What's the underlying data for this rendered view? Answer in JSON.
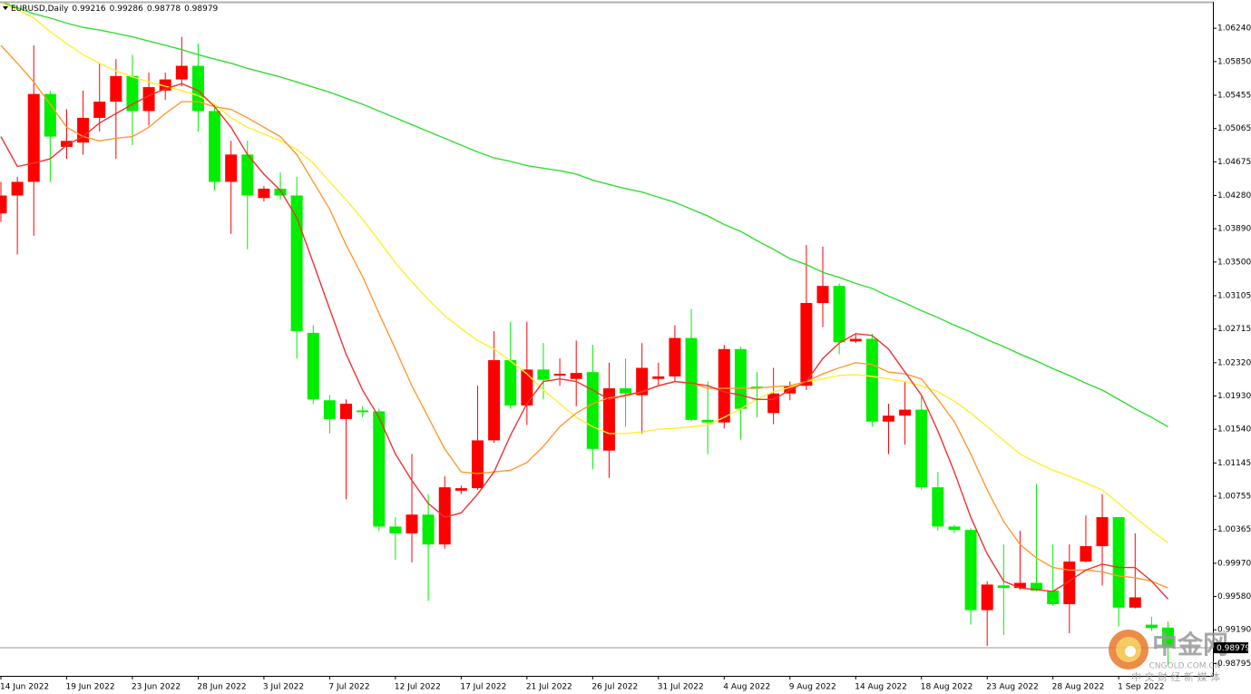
{
  "chart_data": {
    "type": "candlestick",
    "title": "EURUSD,Daily",
    "categories": [
      "14 Jun 2022",
      null,
      null,
      null,
      "19 Jun 2022",
      null,
      null,
      null,
      "23 Jun 2022",
      null,
      null,
      null,
      "28 Jun 2022",
      null,
      null,
      null,
      "3 Jul 2022",
      null,
      null,
      null,
      "7 Jul 2022",
      null,
      null,
      null,
      "12 Jul 2022",
      null,
      null,
      null,
      "17 Jul 2022",
      null,
      null,
      null,
      "21 Jul 2022",
      null,
      null,
      null,
      "26 Jul 2022",
      null,
      null,
      null,
      "31 Jul 2022",
      null,
      null,
      null,
      "4 Aug 2022",
      null,
      null,
      null,
      "9 Aug 2022",
      null,
      null,
      null,
      "14 Aug 2022",
      null,
      null,
      null,
      "18 Aug 2022",
      null,
      null,
      null,
      "23 Aug 2022",
      null,
      null,
      null,
      "28 Aug 2022",
      null,
      null,
      null,
      "1 Sep 2022",
      null,
      null,
      null
    ],
    "open": [
      1.0407,
      1.0428,
      1.0444,
      1.0547,
      1.0485,
      1.049,
      1.0519,
      1.0538,
      1.0568,
      1.0527,
      1.0551,
      1.0564,
      1.058,
      1.0527,
      1.0444,
      1.0476,
      1.0425,
      1.0436,
      1.0428,
      1.0267,
      1.0188,
      1.0166,
      1.0176,
      1.0175,
      1.004,
      1.0032,
      1.0054,
      1.0019,
      1.0082,
      1.0085,
      1.0141,
      1.0235,
      1.0182,
      1.0224,
      1.0217,
      1.0213,
      1.0221,
      1.0129,
      1.0202,
      1.0194,
      1.0213,
      1.0216,
      1.0261,
      1.0165,
      1.0162,
      1.0248,
      1.0204,
      1.0173,
      1.0196,
      1.0205,
      1.0302,
      1.0322,
      1.0257,
      1.026,
      1.0163,
      1.017,
      1.0177,
      1.0086,
      1.004,
      1.0036,
      0.9942,
      0.9971,
      0.9968,
      0.9974,
      0.9965,
      0.9949,
      0.9999,
      1.0017,
      1.0051,
      0.9945,
      0.9925,
      0.99216
    ],
    "high": [
      1.0444,
      1.045,
      1.0604,
      1.0551,
      1.0529,
      1.0551,
      1.0583,
      1.0588,
      1.0593,
      1.0572,
      1.0572,
      1.0614,
      1.0606,
      1.0535,
      1.0492,
      1.0492,
      1.0439,
      1.0455,
      1.045,
      1.0276,
      1.0194,
      1.0189,
      1.0181,
      1.0178,
      1.0051,
      1.0125,
      1.0078,
      1.0099,
      1.0088,
      1.0205,
      1.0269,
      1.028,
      1.028,
      1.0255,
      1.0237,
      1.0258,
      1.0253,
      1.0232,
      1.0237,
      1.0255,
      1.0232,
      1.0276,
      1.0295,
      1.021,
      1.0253,
      1.0251,
      1.0221,
      1.0226,
      1.021,
      1.037,
      1.0368,
      1.0325,
      1.0266,
      1.0266,
      1.0184,
      1.021,
      1.0194,
      1.0104,
      1.0042,
      1.0038,
      0.9976,
      1.0019,
      1.0035,
      1.009,
      1.0019,
      1.0019,
      1.0053,
      1.0078,
      1.0051,
      1.0032,
      0.9934,
      0.99286
    ],
    "low": [
      1.0397,
      1.0359,
      1.0381,
      1.0444,
      1.0471,
      1.0476,
      1.0503,
      1.0471,
      1.0487,
      1.051,
      1.054,
      1.0556,
      1.0503,
      1.0434,
      1.0383,
      1.0365,
      1.0421,
      1.0423,
      1.0237,
      1.0184,
      1.0149,
      1.0072,
      1.0168,
      1.0035,
      1.0001,
      0.9998,
      0.9953,
      1.0014,
      1.0078,
      1.0083,
      1.0138,
      1.0178,
      1.0159,
      1.0189,
      1.0205,
      1.0181,
      1.0107,
      1.0097,
      1.0157,
      1.0149,
      1.0205,
      1.021,
      1.0163,
      1.0125,
      1.0155,
      1.0142,
      1.0168,
      1.016,
      1.0188,
      1.02,
      1.0274,
      1.0242,
      1.0255,
      1.0157,
      1.0125,
      1.0136,
      1.0083,
      1.0035,
      1.0032,
      0.9925,
      0.99,
      0.9913,
      0.9966,
      0.9964,
      0.9947,
      0.9915,
      0.9998,
      0.9971,
      0.9923,
      0.9944,
      0.9918,
      0.98778
    ],
    "close": [
      1.0428,
      1.0444,
      1.0547,
      1.0497,
      1.0492,
      1.0519,
      1.0538,
      1.0568,
      1.0527,
      1.0555,
      1.0564,
      1.058,
      1.0527,
      1.0444,
      1.0476,
      1.0428,
      1.0436,
      1.0428,
      1.0269,
      1.0189,
      1.0166,
      1.0184,
      1.0174,
      1.004,
      1.0032,
      1.0054,
      1.0019,
      1.0086,
      1.0085,
      1.0141,
      1.0235,
      1.0182,
      1.0224,
      1.0212,
      1.0219,
      1.022,
      1.0131,
      1.0202,
      1.0196,
      1.0226,
      1.0216,
      1.0261,
      1.0165,
      1.0162,
      1.0248,
      1.0178,
      1.0202,
      1.0196,
      1.0205,
      1.0302,
      1.0322,
      1.0256,
      1.026,
      1.0163,
      1.017,
      1.0177,
      1.0086,
      1.004,
      1.0036,
      0.9942,
      0.9972,
      0.9968,
      0.9974,
      0.9965,
      0.9949,
      0.9999,
      1.0017,
      1.0051,
      0.9945,
      0.9957,
      0.9921,
      0.98979
    ],
    "up_color": "#ff0000",
    "down_color": "#00ee00",
    "lines": [
      {
        "color": "#33dd33",
        "values": [
          1.0655,
          1.0648,
          1.0641,
          1.0636,
          1.063,
          1.0625,
          1.0622,
          1.0618,
          1.0614,
          1.0609,
          1.0604,
          1.0599,
          1.0593,
          1.0588,
          1.0583,
          1.0577,
          1.0572,
          1.0567,
          1.0561,
          1.0555,
          1.0549,
          1.0542,
          1.0535,
          1.0527,
          1.0519,
          1.0511,
          1.0503,
          1.0495,
          1.0487,
          1.0479,
          1.0472,
          1.0468,
          1.0463,
          1.046,
          1.0457,
          1.0453,
          1.0446,
          1.0441,
          1.0436,
          1.0432,
          1.0426,
          1.042,
          1.0412,
          1.0404,
          1.0394,
          1.0386,
          1.0375,
          1.0365,
          1.0354,
          1.0347,
          1.0338,
          1.0332,
          1.0325,
          1.0319,
          1.031,
          1.0302,
          1.0293,
          1.0285,
          1.0276,
          1.0268,
          1.0259,
          1.0251,
          1.0242,
          1.0234,
          1.0225,
          1.0217,
          1.0208,
          1.02,
          1.0189,
          1.0178,
          1.0168,
          1.0157
        ]
      },
      {
        "color": "#ffee33",
        "values": [
          1.0654,
          1.0646,
          1.0636,
          1.062,
          1.0606,
          1.0593,
          1.0583,
          1.0574,
          1.0567,
          1.0561,
          1.0556,
          1.0551,
          1.0545,
          1.0535,
          1.0519,
          1.0508,
          1.05,
          1.0492,
          1.0482,
          1.0466,
          1.0444,
          1.0423,
          1.04,
          1.0375,
          1.0349,
          1.0327,
          1.0306,
          1.0287,
          1.0272,
          1.0258,
          1.0248,
          1.0234,
          1.0219,
          1.02,
          1.0184,
          1.0168,
          1.0157,
          1.0149,
          1.0149,
          1.0151,
          1.0154,
          1.0155,
          1.0157,
          1.0159,
          1.0168,
          1.0178,
          1.0189,
          1.0198,
          1.0203,
          1.021,
          1.0213,
          1.0217,
          1.0218,
          1.0216,
          1.0213,
          1.021,
          1.0205,
          1.0198,
          1.0187,
          1.0173,
          1.0157,
          1.0141,
          1.0125,
          1.0115,
          1.0106,
          1.0099,
          1.0091,
          1.0083,
          1.0067,
          1.0051,
          1.0035,
          1.0021
        ]
      },
      {
        "color": "#ff9933",
        "values": [
          1.0604,
          1.0583,
          1.0561,
          1.0535,
          1.0508,
          1.0497,
          1.0492,
          1.0495,
          1.0497,
          1.0508,
          1.0524,
          1.0538,
          1.0538,
          1.0532,
          1.0529,
          1.0519,
          1.0508,
          1.0497,
          1.0476,
          1.0444,
          1.0412,
          1.037,
          1.0333,
          1.029,
          1.0248,
          1.0205,
          1.0168,
          1.0131,
          1.0104,
          1.0102,
          1.0104,
          1.0106,
          1.0115,
          1.0134,
          1.0157,
          1.0173,
          1.0184,
          1.0191,
          1.0193,
          1.0198,
          1.0205,
          1.021,
          1.0208,
          1.0202,
          1.0202,
          1.0202,
          1.0202,
          1.0204,
          1.0205,
          1.021,
          1.0219,
          1.0226,
          1.0232,
          1.023,
          1.0221,
          1.0219,
          1.0213,
          1.0189,
          1.0163,
          1.0125,
          1.0083,
          1.0046,
          1.0019,
          1.0003,
          0.9992,
          0.9989,
          0.9989,
          0.9987,
          0.9982,
          0.998,
          0.9976,
          0.9968
        ]
      },
      {
        "color": "#ee3333",
        "values": [
          1.0497,
          1.0462,
          1.0466,
          1.0471,
          1.0487,
          1.0497,
          1.0513,
          1.0524,
          1.0535,
          1.0545,
          1.0553,
          1.0559,
          1.0551,
          1.0532,
          1.0508,
          1.0476,
          1.0453,
          1.0434,
          1.0402,
          1.0349,
          1.0295,
          1.0242,
          1.02,
          1.0168,
          1.0125,
          1.0094,
          1.0067,
          1.0051,
          1.0056,
          1.0078,
          1.0104,
          1.0147,
          1.0184,
          1.021,
          1.0213,
          1.021,
          1.02,
          1.0189,
          1.0194,
          1.0198,
          1.0205,
          1.021,
          1.0208,
          1.0205,
          1.0198,
          1.0194,
          1.0189,
          1.0189,
          1.02,
          1.021,
          1.0237,
          1.0255,
          1.0266,
          1.0264,
          1.0248,
          1.0221,
          1.0194,
          1.0152,
          1.0104,
          1.0051,
          1.0008,
          0.9976,
          0.9968,
          0.9966,
          0.9964,
          0.9976,
          0.9989,
          0.9996,
          0.9992,
          0.9992,
          0.9976,
          0.9955
        ]
      }
    ],
    "ylim": [
      0.9865,
      1.0655
    ],
    "yticks": [
      {
        "value": 1.0624,
        "label": "1.06240"
      },
      {
        "value": 1.0585,
        "label": "1.05850"
      },
      1.05455,
      1.05065,
      1.04675,
      {
        "value": 1.0428,
        "label": "1.04280"
      },
      {
        "value": 1.0389,
        "label": "1.03890"
      },
      {
        "value": 1.035,
        "label": "1.03500"
      },
      1.03105,
      1.02715,
      {
        "value": 1.0232,
        "label": "1.02320"
      },
      {
        "value": 1.0193,
        "label": "1.01930"
      },
      {
        "value": 1.0154,
        "label": "1.01540"
      },
      1.01145,
      1.00755,
      1.00365,
      {
        "value": 0.9997,
        "label": "0.99970"
      },
      {
        "value": 0.9958,
        "label": "0.99580"
      },
      {
        "value": 0.9919,
        "label": "0.99190"
      },
      0.98795
    ],
    "grid": false,
    "watermark": {
      "brand": "中金网",
      "site": "CNGOLD.COM.CN",
      "slogan": "中 文 财 经 新 媒 体"
    }
  }
}
